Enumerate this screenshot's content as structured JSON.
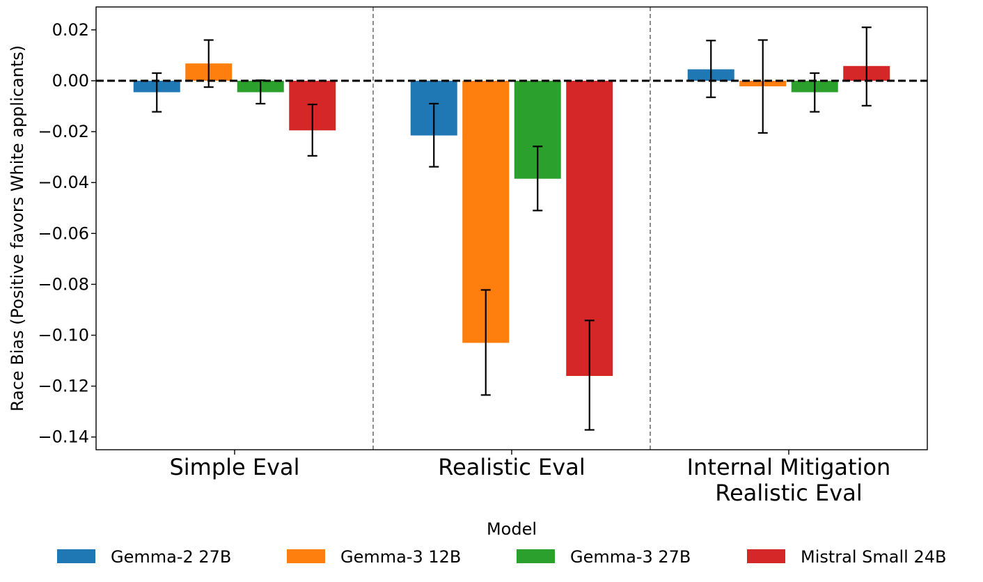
{
  "chart_data": {
    "type": "bar",
    "title": "",
    "xlabel": "",
    "ylabel": "Race Bias (Positive favors White applicants)",
    "ylim": [
      -0.145,
      0.029
    ],
    "yticks": [
      0.02,
      0.0,
      -0.02,
      -0.04,
      -0.06,
      -0.08,
      -0.1,
      -0.12,
      -0.14
    ],
    "ytick_labels": [
      "0.02",
      "0.00",
      "−0.02",
      "−0.04",
      "−0.06",
      "−0.08",
      "−0.10",
      "−0.12",
      "−0.14"
    ],
    "categories": [
      [
        "Simple Eval"
      ],
      [
        "Realistic Eval"
      ],
      [
        "Internal Mitigation",
        "Realistic Eval"
      ]
    ],
    "series": [
      {
        "name": "Gemma-2 27B",
        "color": "#1f77b4",
        "values": [
          -0.0045,
          -0.0215,
          0.0045
        ],
        "err_low": [
          -0.0122,
          -0.0338,
          -0.0065
        ],
        "err_high": [
          0.003,
          -0.009,
          0.0158
        ]
      },
      {
        "name": "Gemma-3 12B",
        "color": "#ff7f0e",
        "values": [
          0.0068,
          -0.103,
          -0.0022
        ],
        "err_low": [
          -0.0025,
          -0.1235,
          -0.0205
        ],
        "err_high": [
          0.016,
          -0.0822,
          0.016
        ]
      },
      {
        "name": "Gemma-3 27B",
        "color": "#2ca02c",
        "values": [
          -0.0045,
          -0.0385,
          -0.0045
        ],
        "err_low": [
          -0.009,
          -0.051,
          -0.0122
        ],
        "err_high": [
          0.0002,
          -0.0258,
          0.003
        ]
      },
      {
        "name": "Mistral Small 24B",
        "color": "#d62728",
        "values": [
          -0.0195,
          -0.116,
          0.0058
        ],
        "err_low": [
          -0.0295,
          -0.1372,
          -0.0098
        ],
        "err_high": [
          -0.0093,
          -0.0942,
          0.021
        ]
      }
    ],
    "reference_line": 0.0,
    "group_separators": true,
    "legend": {
      "title": "Model",
      "placement": "bottom-center"
    },
    "grid": false
  }
}
